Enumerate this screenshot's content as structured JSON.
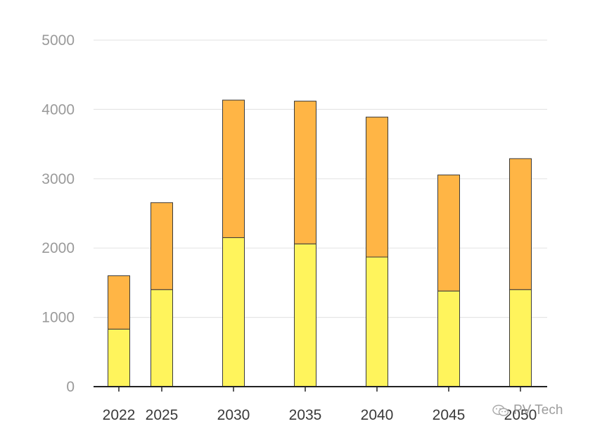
{
  "chart_data": {
    "type": "bar",
    "stacked": true,
    "categories": [
      "2022",
      "2025",
      "2030",
      "2035",
      "2040",
      "2045",
      "2050"
    ],
    "series": [
      {
        "values": [
          830,
          1400,
          2150,
          2060,
          1870,
          1380,
          1400
        ],
        "color": "#fff45c"
      },
      {
        "values": [
          770,
          1255,
          1985,
          2060,
          2020,
          1675,
          1890
        ],
        "color": "#ffb545"
      }
    ],
    "ylim": [
      0,
      5000
    ],
    "yticks": [
      0,
      1000,
      2000,
      3000,
      4000,
      5000
    ],
    "grid": true,
    "xlabel": "",
    "ylabel": "",
    "title": ""
  },
  "watermark": {
    "text": "PV Tech",
    "icon": "wechat-icon"
  },
  "colors": {
    "grid": "#e6e6e6",
    "axis": "#222222",
    "bar_outline": "#3a3a3a"
  }
}
